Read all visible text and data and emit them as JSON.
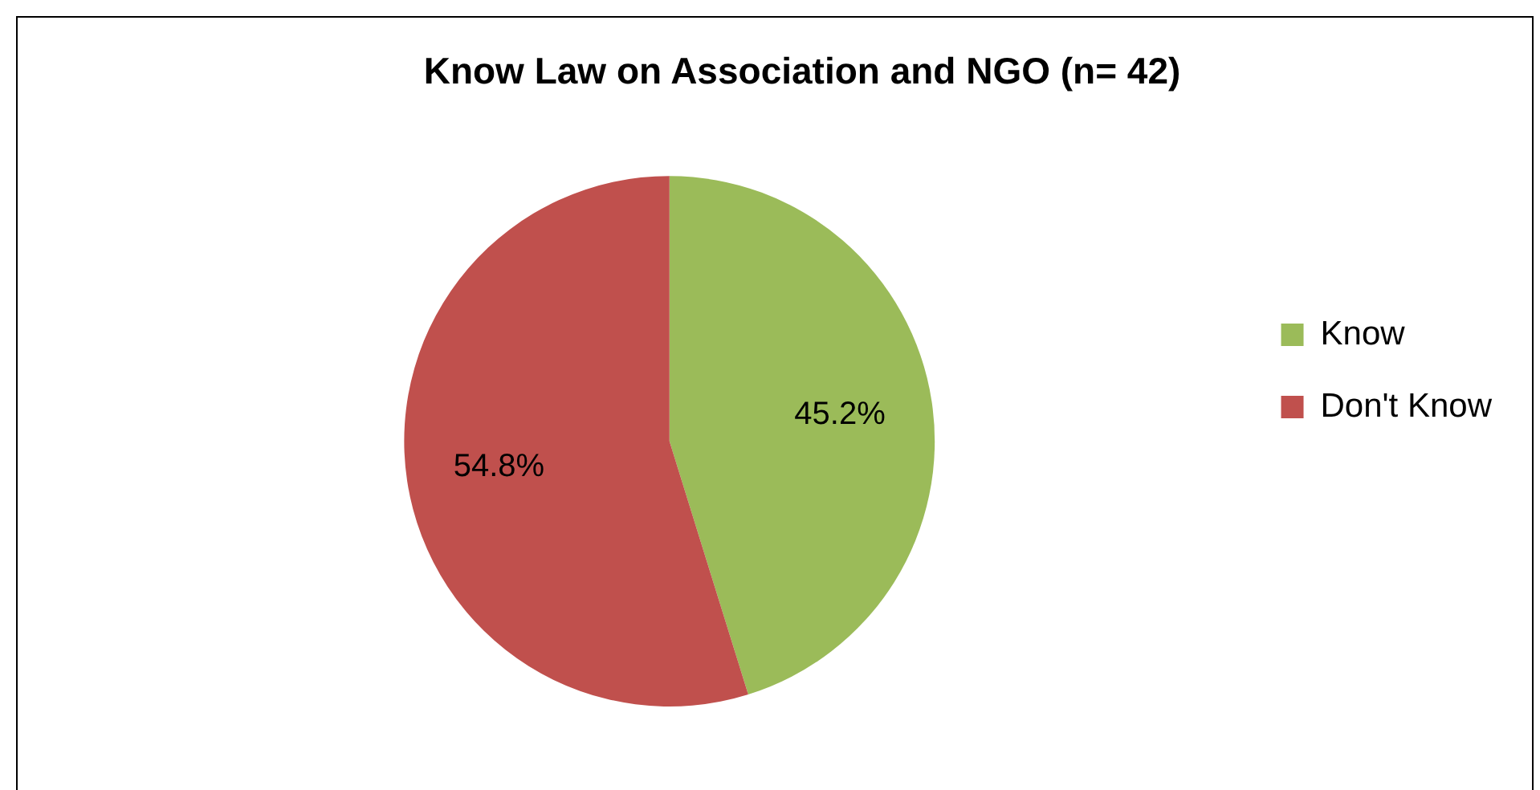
{
  "chart_data": {
    "type": "pie",
    "title": "Know Law on Association and NGO (n= 42)",
    "categories": [
      "Know",
      "Don't Know"
    ],
    "values": [
      45.2,
      54.8
    ],
    "colors": [
      "#9bbb59",
      "#c0504d"
    ],
    "value_labels": [
      "45.2%",
      "54.8%"
    ],
    "legend": "right"
  }
}
